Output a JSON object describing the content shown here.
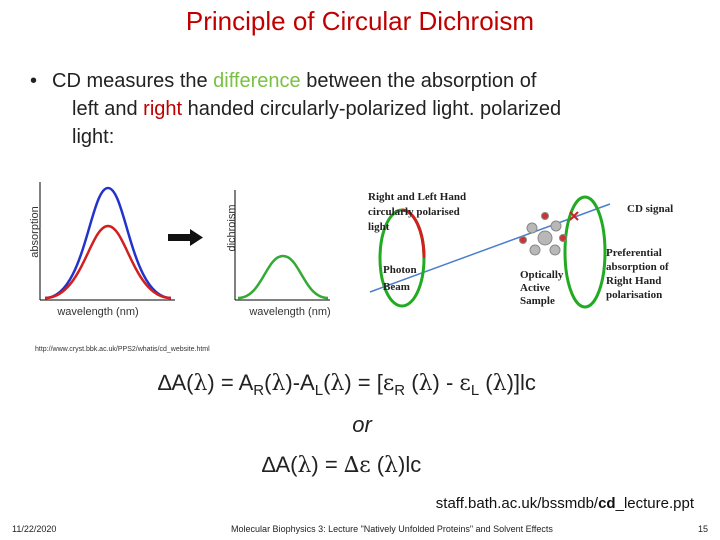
{
  "title": "Principle of Circular Dichroism",
  "bullet": {
    "parts": [
      "CD measures the ",
      "difference",
      " between the absorption of",
      "left",
      " and ",
      "right",
      " handed circularly-polarized light. polarized",
      "light:"
    ]
  },
  "figure_left": {
    "y_label_1": "absorption",
    "x_label_1": "wavelength (nm)",
    "y_label_2": "dichroism",
    "x_label_2": "wavelength (nm)"
  },
  "figure_right": {
    "light_label": [
      "Right and Left Hand",
      "circularly polarised",
      "light"
    ],
    "beam_label": [
      "Photon",
      "Beam"
    ],
    "sample_label": [
      "Optically",
      "Active",
      "Sample"
    ],
    "cd_label": "CD signal",
    "preferential_label": [
      "Preferential",
      "absorption of",
      "Right Hand",
      "polarisation"
    ]
  },
  "url": "http://www.cryst.bbk.ac.uk/PPS2/whatis/cd_website.html",
  "equation_1": [
    "∆A(",
    "λ",
    ") = A",
    "R",
    "(",
    "λ",
    ")-A",
    "L",
    "(",
    "λ",
    ") = [",
    "ε",
    "R",
    " (",
    "λ",
    ") - ",
    "ε",
    "L",
    " (",
    "λ",
    ")]lc"
  ],
  "or": "or",
  "equation_2": [
    "∆A(",
    "λ",
    ") = ",
    "∆ε",
    " (",
    "λ",
    ")lc"
  ],
  "source": [
    "staff.bath.ac.uk/bssmdb/",
    "cd",
    "_lecture.ppt"
  ],
  "footer": {
    "date": "11/22/2020",
    "text": "Molecular Biophysics 3: Lecture \"Natively Unfolded Proteins\" and Solvent Effects",
    "page": "15"
  }
}
